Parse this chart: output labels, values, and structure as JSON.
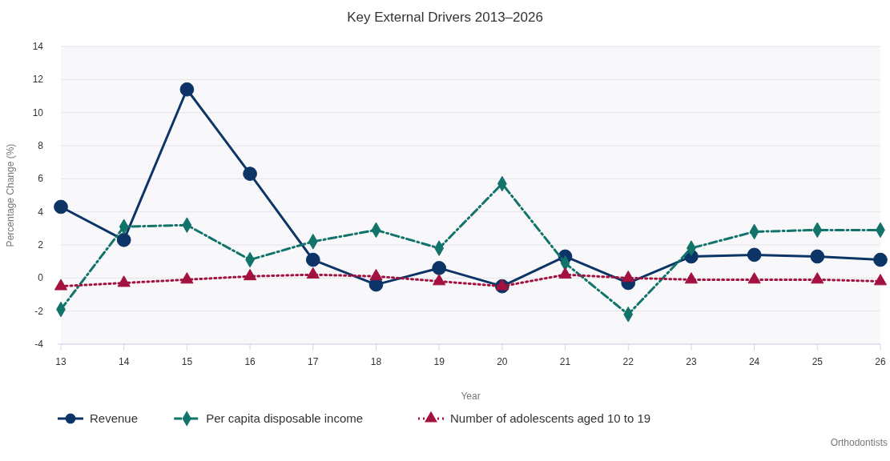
{
  "chart_data": {
    "type": "line",
    "title": "Key External Drivers 2013–2026",
    "xlabel": "Year",
    "ylabel": "Percentage Change (%)",
    "categories": [
      "13",
      "14",
      "15",
      "16",
      "17",
      "18",
      "19",
      "20",
      "21",
      "22",
      "23",
      "24",
      "25",
      "26"
    ],
    "series": [
      {
        "name": "Revenue",
        "color": "#0c3466",
        "marker": "circle",
        "line_style": "solid",
        "values": [
          4.3,
          2.3,
          11.4,
          6.3,
          1.1,
          -0.4,
          0.6,
          -0.5,
          1.3,
          -0.3,
          1.3,
          1.4,
          1.3,
          1.1
        ]
      },
      {
        "name": "Per capita disposable income",
        "color": "#12736b",
        "marker": "diamond",
        "line_style": "dashed",
        "values": [
          -1.9,
          3.1,
          3.2,
          1.1,
          2.2,
          2.9,
          1.8,
          5.7,
          0.9,
          -2.2,
          1.8,
          2.8,
          2.9,
          2.9
        ]
      },
      {
        "name": "Number of adolescents aged 10 to 19",
        "color": "#a3123f",
        "marker": "triangle",
        "line_style": "dotted",
        "values": [
          -0.5,
          -0.3,
          -0.1,
          0.1,
          0.2,
          0.1,
          -0.2,
          -0.5,
          0.2,
          0,
          -0.1,
          -0.1,
          -0.1,
          -0.2
        ]
      }
    ],
    "ylim": [
      -4,
      14
    ],
    "yticks": [
      -4,
      -2,
      0,
      2,
      4,
      6,
      8,
      10,
      12,
      14
    ],
    "grid": "y",
    "legend": "bottom left",
    "annotations": [
      "Orthodontists"
    ]
  }
}
